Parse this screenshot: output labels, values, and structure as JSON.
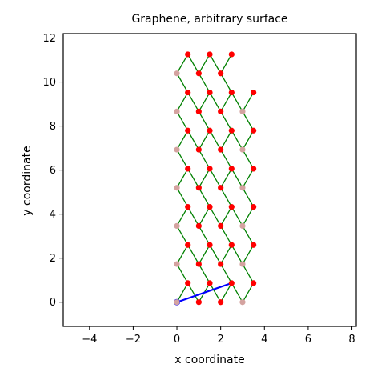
{
  "chart_data": {
    "type": "scatter",
    "title": "Graphene, arbitrary surface",
    "xlabel": "x coordinate",
    "ylabel": "y coordinate",
    "xlim": [
      -5.2,
      8.2
    ],
    "ylim": [
      -1.1,
      12.2
    ],
    "xticks": [
      -4,
      -2,
      0,
      2,
      4,
      6,
      8
    ],
    "yticks": [
      0,
      2,
      4,
      6,
      8,
      10,
      12
    ],
    "xtick_labels": [
      "−4",
      "−2",
      "0",
      "2",
      "4",
      "6",
      "8"
    ],
    "ytick_labels": [
      "0",
      "2",
      "4",
      "6",
      "8",
      "10",
      "12"
    ],
    "grid": false,
    "colors": {
      "surface_atom": "#ff0000",
      "edge_atom": "#d4a3a0",
      "bond": "#008000",
      "vector": "#0000ff"
    },
    "lattice": {
      "a": 1.0,
      "rows": 7,
      "row_spacing": 1.7321,
      "row_y": [
        0.0,
        1.7321,
        3.4641,
        5.1962,
        6.9282,
        8.6603,
        10.3923
      ],
      "columns_x": [
        0.0,
        1.0,
        2.0,
        3.0
      ],
      "top_row_columns_x": [
        0.0,
        1.0,
        2.0
      ],
      "edge_columns_x": [
        0.0,
        3.0
      ]
    },
    "vector": {
      "start": [
        0.0,
        0.0
      ],
      "end": [
        2.5,
        0.866
      ]
    }
  }
}
